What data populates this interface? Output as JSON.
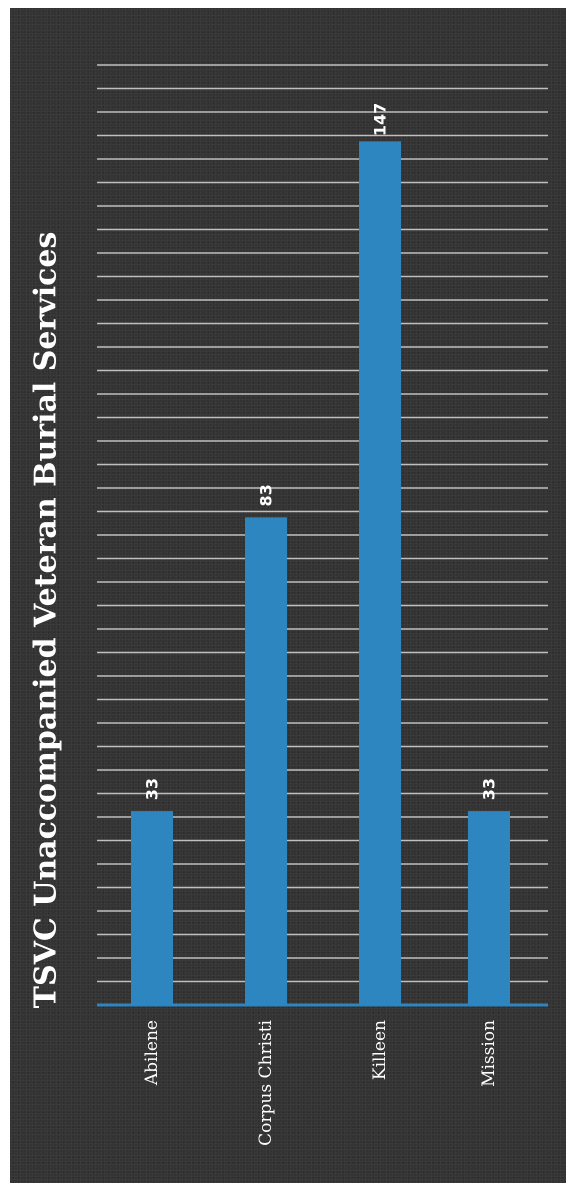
{
  "chart_data": {
    "type": "bar",
    "orientation": "vertical, page rotated 90 degrees counter-clockwise",
    "title": "TSVC Unaccompanied Veteran Burial Services",
    "categories": [
      "Abilene",
      "Corpus Christi",
      "Killeen",
      "Mission"
    ],
    "values": [
      33,
      83,
      147,
      33
    ],
    "data_labels": [
      "33",
      "83",
      "147",
      "33"
    ],
    "xlabel": "",
    "ylabel": "",
    "ylim": [
      0,
      160
    ],
    "grid": true,
    "legend": "none",
    "colors": {
      "background": "#333333",
      "bar": "#2E86C1",
      "gridline": "#BFBFBF",
      "axis": "#2E86C1",
      "text": "#FFFFFF"
    }
  }
}
